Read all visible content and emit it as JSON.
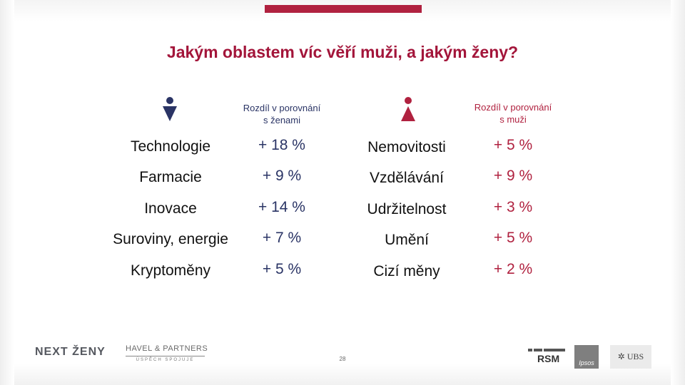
{
  "slide": {
    "title": "Jakým oblastem víc věří muži, a jakým ženy?",
    "page_number": "28"
  },
  "colors": {
    "accent": "#b0213f",
    "men": "#2a3465",
    "women": "#b0213f"
  },
  "men": {
    "icon": "male-person-icon",
    "header_line1": "Rozdíl v porovnání",
    "header_line2": "s ženami",
    "rows": [
      {
        "category": "Technologie",
        "value": "+ 18 %"
      },
      {
        "category": "Farmacie",
        "value": "+ 9 %"
      },
      {
        "category": "Inovace",
        "value": "+ 14 %"
      },
      {
        "category": "Suroviny, energie",
        "value": "+ 7 %"
      },
      {
        "category": "Kryptoměny",
        "value": "+ 5 %"
      }
    ]
  },
  "women": {
    "icon": "female-person-icon",
    "header_line1": "Rozdíl v porovnání",
    "header_line2": "s muži",
    "rows": [
      {
        "category": "Nemovitosti",
        "value": "+ 5 %"
      },
      {
        "category": "Vzdělávání",
        "value": "+ 9 %"
      },
      {
        "category": "Udržitelnost",
        "value": "+ 3 %"
      },
      {
        "category": "Umění",
        "value": "+ 5 %"
      },
      {
        "category": "Cizí měny",
        "value": "+ 2 %"
      }
    ]
  },
  "footer": {
    "logo_next_zeny": "NEXT ŽENY",
    "logo_havel": "HAVEL & PARTNERS",
    "logo_havel_tagline": "ÚSPĚCH SPOJUJE",
    "logo_rsm": "RSM",
    "logo_ipsos": "Ipsos",
    "logo_ubs": "UBS"
  }
}
